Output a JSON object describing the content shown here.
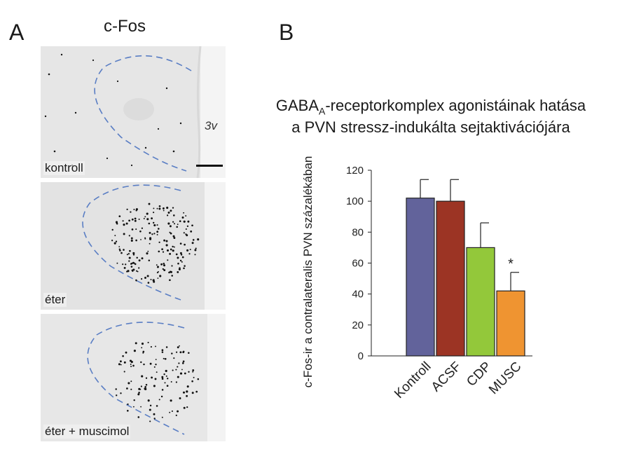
{
  "panel_a": {
    "letter": "A",
    "title": "c-Fos",
    "ventricle_label": "3v",
    "images": [
      {
        "label": "kontroll"
      },
      {
        "label": "éter"
      },
      {
        "label": "éter + muscimol"
      }
    ]
  },
  "panel_b": {
    "letter": "B",
    "title_pre": "GABA",
    "title_sub": "A",
    "title_post": "-receptorkomplex agonistáinak hatása",
    "title_line2": "a PVN stressz-indukálta sejtaktivációjára"
  },
  "colors": {
    "outline_dashed": "#5a7ec4",
    "kontroll": "#62639b",
    "acsf": "#9c3424",
    "cdp": "#93c83a",
    "musc": "#ef9431"
  },
  "chart_data": {
    "type": "bar",
    "title": "GABAA-receptorkomplex agonistáinak hatása a PVN stressz-indukálta sejtaktivációjára",
    "ylabel": "c-Fos-ir a contralateralis PVN százalékában",
    "xlabel": "",
    "categories": [
      "Kontroll",
      "ACSF",
      "CDP",
      "MUSC"
    ],
    "values": [
      102,
      100,
      70,
      42
    ],
    "errors": [
      12,
      14,
      16,
      12
    ],
    "colors": [
      "#62639b",
      "#9c3424",
      "#93c83a",
      "#ef9431"
    ],
    "significance": [
      "",
      "",
      "",
      "*"
    ],
    "ylim": [
      0,
      120
    ],
    "yticks": [
      "0",
      "20",
      "40",
      "60",
      "80",
      "100",
      "120"
    ],
    "grid": false
  }
}
